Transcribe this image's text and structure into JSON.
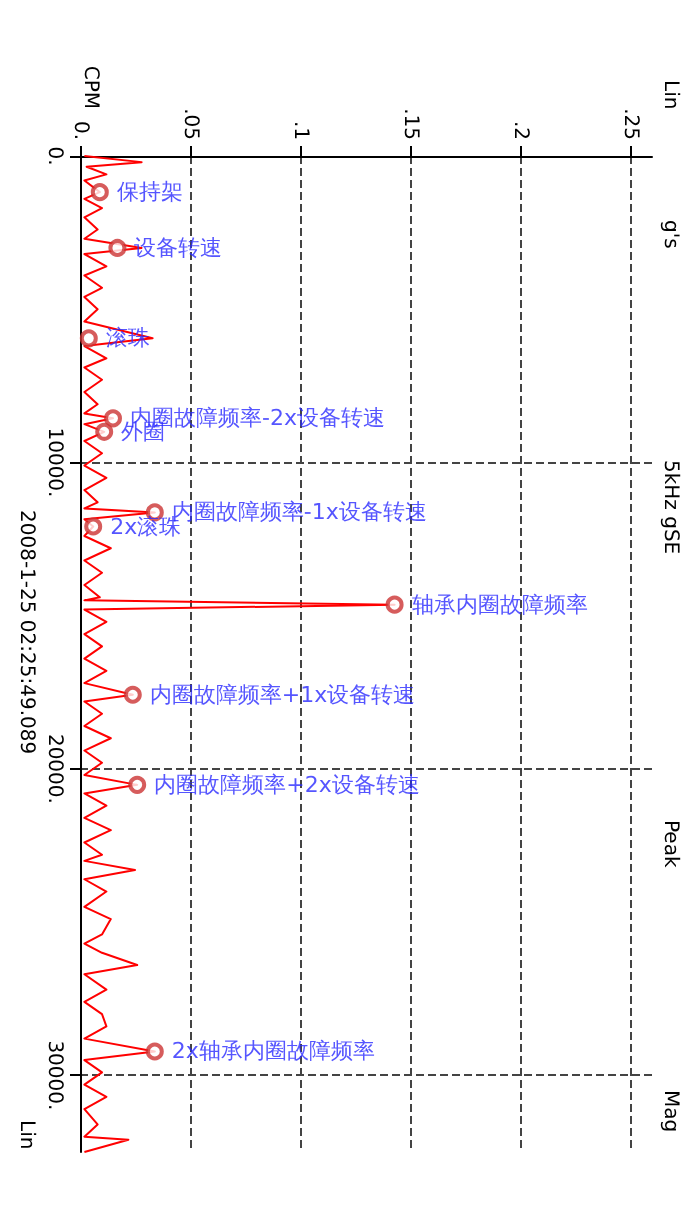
{
  "chart_data": {
    "type": "line",
    "orientation": "horizontal",
    "ylabel": "CPM",
    "x": [
      0,
      200,
      350,
      600,
      800,
      1180,
      1400,
      1700,
      2000,
      2400,
      2700,
      3000,
      3200,
      3600,
      3900,
      4300,
      4600,
      5000,
      5400,
      5950,
      6200,
      6600,
      6900,
      7300,
      7700,
      8100,
      8400,
      8560,
      8750,
      9000,
      9300,
      9700,
      10100,
      10500,
      10900,
      11300,
      11500,
      11630,
      11850,
      12090,
      12400,
      12800,
      13200,
      13600,
      14000,
      14400,
      14500,
      14640,
      14800,
      15200,
      15600,
      16000,
      16400,
      16800,
      17200,
      17580,
      17800,
      18200,
      18600,
      19000,
      19400,
      19800,
      20200,
      20520,
      20800,
      21200,
      21600,
      22000,
      22400,
      22800,
      23000,
      23300,
      23600,
      24000,
      24500,
      24900,
      25400,
      25700,
      26000,
      26400,
      26700,
      27200,
      27600,
      28000,
      28400,
      28800,
      29220,
      29500,
      29900,
      30300,
      30700,
      31100,
      31600,
      32000,
      32100,
      32500
    ],
    "series": [
      {
        "color": "#ff0000",
        "values": [
          0.002,
          0.028,
          0.003,
          0.012,
          0.002,
          0.009,
          0.002,
          0.01,
          0.002,
          0.008,
          0.002,
          0.028,
          0.002,
          0.012,
          0.002,
          0.01,
          0.002,
          0.008,
          0.002,
          0.033,
          0.002,
          0.012,
          0.002,
          0.01,
          0.002,
          0.008,
          0.002,
          0.015,
          0.002,
          0.011,
          0.002,
          0.01,
          0.002,
          0.012,
          0.002,
          0.008,
          0.002,
          0.034,
          0.002,
          0.006,
          0.002,
          0.014,
          0.002,
          0.01,
          0.002,
          0.009,
          0.002,
          0.143,
          0.002,
          0.012,
          0.002,
          0.01,
          0.002,
          0.012,
          0.002,
          0.024,
          0.002,
          0.01,
          0.002,
          0.014,
          0.002,
          0.01,
          0.002,
          0.026,
          0.002,
          0.012,
          0.002,
          0.014,
          0.002,
          0.01,
          0.002,
          0.025,
          0.002,
          0.012,
          0.002,
          0.014,
          0.01,
          0.002,
          0.01,
          0.026,
          0.002,
          0.012,
          0.002,
          0.01,
          0.012,
          0.002,
          0.034,
          0.002,
          0.01,
          0.002,
          0.012,
          0.002,
          0.008,
          0.002,
          0.022,
          0.002
        ]
      }
    ],
    "xlim": [
      0,
      0.26
    ],
    "xticks": [
      {
        "value": 0,
        "label": "0."
      },
      {
        "value": 0.05,
        "label": ".05"
      },
      {
        "value": 0.1,
        "label": ".1"
      },
      {
        "value": 0.15,
        "label": ".15"
      },
      {
        "value": 0.2,
        "label": ".2"
      },
      {
        "value": 0.25,
        "label": ".25"
      }
    ],
    "ylim": [
      32500,
      0
    ],
    "yticks": [
      {
        "value": 0,
        "label": "0."
      },
      {
        "value": 10000,
        "label": "10000."
      },
      {
        "value": 20000,
        "label": "20000."
      },
      {
        "value": 30000,
        "label": "30000."
      }
    ],
    "grid": true,
    "line_style": "solid",
    "marker": "none",
    "annotations": [
      {
        "text": "保持架",
        "x": 0.009,
        "y": 1180
      },
      {
        "text": "设备转速",
        "x": 0.017,
        "y": 3000
      },
      {
        "text": "滚珠",
        "x": 0.004,
        "y": 5950
      },
      {
        "text": "内圈故障频率-2x设备转速",
        "x": 0.015,
        "y": 8560
      },
      {
        "text": "外圈",
        "x": 0.011,
        "y": 9000
      },
      {
        "text": "内圈故障频率-1x设备转速",
        "x": 0.034,
        "y": 11630
      },
      {
        "text": "2x滚珠",
        "x": 0.006,
        "y": 12090
      },
      {
        "text": "轴承内圈故障频率",
        "x": 0.143,
        "y": 14640
      },
      {
        "text": "内圈故障频率+1x设备转速",
        "x": 0.024,
        "y": 17580
      },
      {
        "text": "内圈故障频率+2x设备转速",
        "x": 0.026,
        "y": 20520
      },
      {
        "text": "2x轴承内圈故障频率",
        "x": 0.034,
        "y": 29220
      },
      "Lin",
      "g's",
      "5kHz gSE",
      "Peak",
      "Mag",
      "2008-1-25 02:25:49.089",
      "Lin"
    ]
  }
}
